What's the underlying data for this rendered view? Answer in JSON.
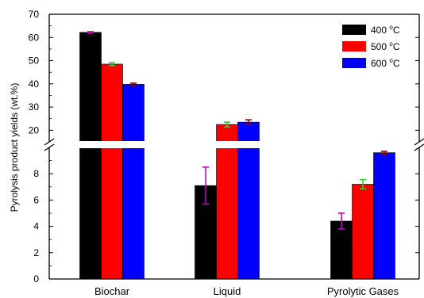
{
  "chart_data": {
    "type": "bar",
    "categories": [
      "Biochar",
      "Liquid",
      "Pyrolytic Gases"
    ],
    "series": [
      {
        "name": "400 °C",
        "label_main": "400 ",
        "label_sup": "o",
        "label_unit": "C",
        "color": "#000000",
        "values": [
          62.2,
          7.1,
          4.4
        ],
        "errors": [
          0.3,
          1.4,
          0.6
        ],
        "error_color": "#cc00cc"
      },
      {
        "name": "500 °C",
        "label_main": "500 ",
        "label_sup": "o",
        "label_unit": "C",
        "color": "#ff0000",
        "values": [
          48.5,
          22.5,
          7.2
        ],
        "errors": [
          0.6,
          1.0,
          0.35
        ],
        "error_color": "#33cc33"
      },
      {
        "name": "600 °C",
        "label_main": "600 ",
        "label_sup": "o",
        "label_unit": "C",
        "color": "#0000ff",
        "values": [
          39.8,
          23.5,
          9.6
        ],
        "errors": [
          0.5,
          1.0,
          0.1
        ],
        "error_color": "#8b0000"
      }
    ],
    "ylabel": "Pyrolysis product yields (wt.%)",
    "xlabel": "",
    "title": "",
    "broken_axis": {
      "lower_range": [
        0,
        10
      ],
      "upper_range": [
        15,
        70
      ]
    },
    "yticks_lower": [
      "0",
      "2",
      "4",
      "6",
      "8"
    ],
    "yticks_upper": [
      "20",
      "30",
      "40",
      "50",
      "60",
      "70"
    ],
    "legend_position": "top-right",
    "grid": false
  }
}
